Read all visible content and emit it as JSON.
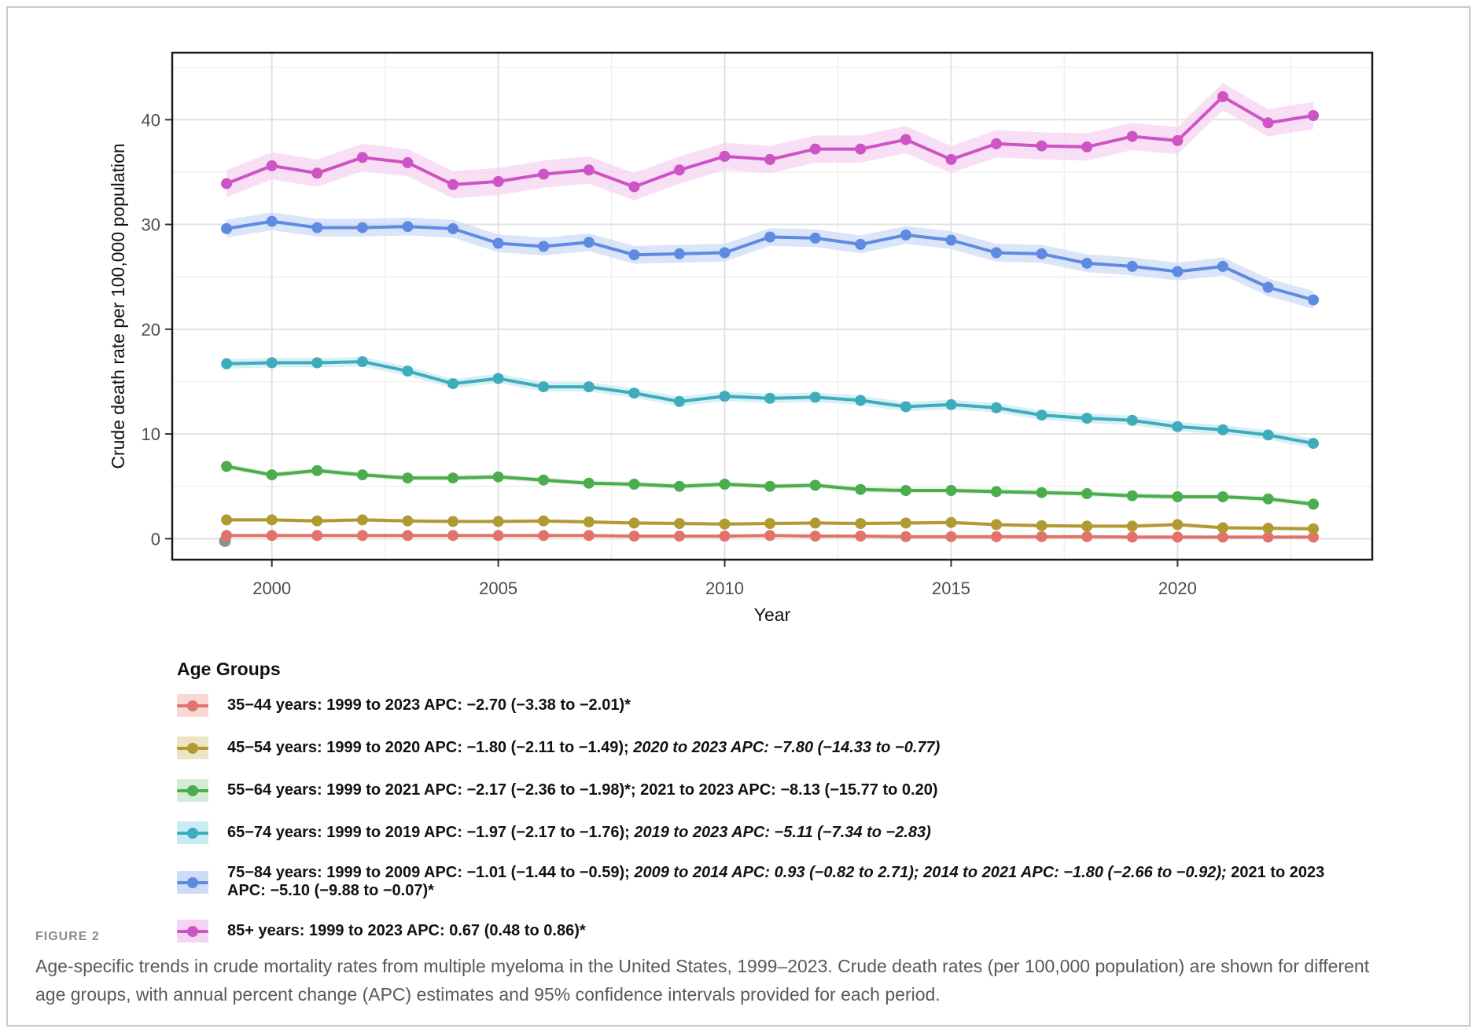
{
  "figure": {
    "label": "FIGURE 2",
    "caption": "Age-specific trends in crude mortality rates from multiple myeloma in the United States, 1999–2023. Crude death rates (per 100,000 population) are shown for different age groups, with annual percent change (APC) estimates and 95% confidence intervals provided for each period."
  },
  "legend": {
    "title": "Age Groups",
    "entries": [
      {
        "id": "35-44",
        "color": "#E2736B",
        "fill": "#F8D8D5",
        "segments": [
          {
            "text": "35−44 years: 1999 to 2023 APC: −2.70 (−3.38 to −2.01)*",
            "italic": false
          }
        ]
      },
      {
        "id": "45-54",
        "color": "#B29A33",
        "fill": "#EBE4C6",
        "segments": [
          {
            "text": "45−54 years: 1999 to 2020 APC: −1.80 (−2.11 to −1.49); ",
            "italic": false
          },
          {
            "text": "2020 to 2023 APC: −7.80 (−14.33 to −0.77)",
            "italic": true
          }
        ]
      },
      {
        "id": "55-64",
        "color": "#4BAD4E",
        "fill": "#D3ECD4",
        "segments": [
          {
            "text": "55−64 years: 1999 to 2021 APC: −2.17 (−2.36 to −1.98)*; 2021 to 2023 APC: −8.13 (−15.77 to 0.20)",
            "italic": false
          }
        ]
      },
      {
        "id": "65-74",
        "color": "#3FACBB",
        "fill": "#C9EBF1",
        "segments": [
          {
            "text": "65−74 years: 1999 to 2019 APC: −1.97 (−2.17 to −1.76); ",
            "italic": false
          },
          {
            "text": "2019 to 2023 APC: −5.11 (−7.34 to −2.83)",
            "italic": true
          }
        ]
      },
      {
        "id": "75-84",
        "color": "#5E8BE1",
        "fill": "#CEDCF7",
        "segments": [
          {
            "text": "75−84 years: 1999 to 2009 APC: −1.01 (−1.44 to −0.59); ",
            "italic": false
          },
          {
            "text": "2009 to 2014 APC: 0.93 (−0.82 to 2.71); 2014 to 2021 APC: −1.80 (−2.66 to −0.92);",
            "italic": true
          },
          {
            "text": " 2021 to 2023 APC: −5.10 (−9.88 to −0.07)*",
            "italic": false
          }
        ]
      },
      {
        "id": "85plus",
        "color": "#CE53C4",
        "fill": "#F5D4F2",
        "segments": [
          {
            "text": "85+ years: 1999 to 2023 APC: 0.67 (0.48 to 0.86)*",
            "italic": false
          }
        ]
      }
    ]
  },
  "chart_data": {
    "type": "line",
    "title": "",
    "xlabel": "Year",
    "ylabel": "Crude death rate per 100,000 population",
    "x": [
      1999,
      2000,
      2001,
      2002,
      2003,
      2004,
      2005,
      2006,
      2007,
      2008,
      2009,
      2010,
      2011,
      2012,
      2013,
      2014,
      2015,
      2016,
      2017,
      2018,
      2019,
      2020,
      2021,
      2022,
      2023
    ],
    "x_ticks": [
      2000,
      2005,
      2010,
      2015,
      2020
    ],
    "y_ticks": [
      0,
      10,
      20,
      30,
      40
    ],
    "y_minor_ticks": [
      5,
      15,
      25,
      35,
      45
    ],
    "x_minor_ticks": [
      2002.5,
      2007.5,
      2012.5,
      2017.5,
      2022.5
    ],
    "xlim": [
      1997.8,
      2024.3
    ],
    "ylim": [
      -2.0,
      46.4
    ],
    "grid": "major+minor",
    "legend_position": "bottom",
    "series": [
      {
        "name": "35−44 years",
        "id": "35-44",
        "color": "#E2736B",
        "ribbon": "#F8D8D5",
        "ci": 0.1,
        "values": [
          0.3,
          0.3,
          0.3,
          0.3,
          0.3,
          0.3,
          0.3,
          0.3,
          0.3,
          0.25,
          0.25,
          0.25,
          0.3,
          0.25,
          0.25,
          0.2,
          0.2,
          0.2,
          0.2,
          0.2,
          0.15,
          0.15,
          0.15,
          0.15,
          0.15
        ]
      },
      {
        "name": "45−54 years",
        "id": "45-54",
        "color": "#B29A33",
        "ribbon": "#EBE4C6",
        "ci": 0.18,
        "values": [
          1.8,
          1.8,
          1.7,
          1.8,
          1.7,
          1.65,
          1.65,
          1.7,
          1.6,
          1.5,
          1.45,
          1.4,
          1.45,
          1.5,
          1.45,
          1.5,
          1.55,
          1.35,
          1.25,
          1.2,
          1.2,
          1.35,
          1.05,
          1.0,
          0.95
        ]
      },
      {
        "name": "55−64 years",
        "id": "55-64",
        "color": "#4BAD4E",
        "ribbon": "#D3ECD4",
        "ci": 0.25,
        "values": [
          6.9,
          6.1,
          6.5,
          6.1,
          5.8,
          5.8,
          5.9,
          5.6,
          5.3,
          5.2,
          5.0,
          5.2,
          5.0,
          5.1,
          4.7,
          4.6,
          4.6,
          4.5,
          4.4,
          4.3,
          4.1,
          4.0,
          4.0,
          3.8,
          3.3
        ]
      },
      {
        "name": "65−74 years",
        "id": "65-74",
        "color": "#3FACBB",
        "ribbon": "#C9EBF1",
        "ci": 0.45,
        "values": [
          16.7,
          16.8,
          16.8,
          16.9,
          16.0,
          14.8,
          15.3,
          14.5,
          14.5,
          13.9,
          13.1,
          13.6,
          13.4,
          13.5,
          13.2,
          12.6,
          12.8,
          12.5,
          11.8,
          11.5,
          11.3,
          10.7,
          10.4,
          9.9,
          9.1
        ]
      },
      {
        "name": "75−84 years",
        "id": "75-84",
        "color": "#5E8BE1",
        "ribbon": "#CEDCF7",
        "ci": 0.85,
        "values": [
          29.6,
          30.3,
          29.7,
          29.7,
          29.8,
          29.6,
          28.2,
          27.9,
          28.3,
          27.1,
          27.2,
          27.3,
          28.8,
          28.7,
          28.1,
          29.0,
          28.5,
          27.3,
          27.2,
          26.3,
          26.0,
          25.5,
          26.0,
          24.0,
          22.8
        ]
      },
      {
        "name": "85+ years",
        "id": "85plus",
        "color": "#CE53C4",
        "ribbon": "#F5D4F2",
        "ci": 1.3,
        "values": [
          33.9,
          35.6,
          34.9,
          36.4,
          35.9,
          33.8,
          34.1,
          34.8,
          35.2,
          33.6,
          35.2,
          36.5,
          36.2,
          37.2,
          37.2,
          38.1,
          36.2,
          37.7,
          37.5,
          37.4,
          38.4,
          38.0,
          42.2,
          39.7,
          40.4
        ]
      }
    ],
    "extra_point": {
      "x": 1999,
      "y": 0.0,
      "color": "#8F8F8F",
      "name": "gray-point-1999"
    },
    "colors": {
      "grid_major": "#E2E2E2",
      "grid_minor": "#F0F0F0",
      "panel_border": "#1a1a1a",
      "tick_text": "#4d4d4d"
    }
  }
}
